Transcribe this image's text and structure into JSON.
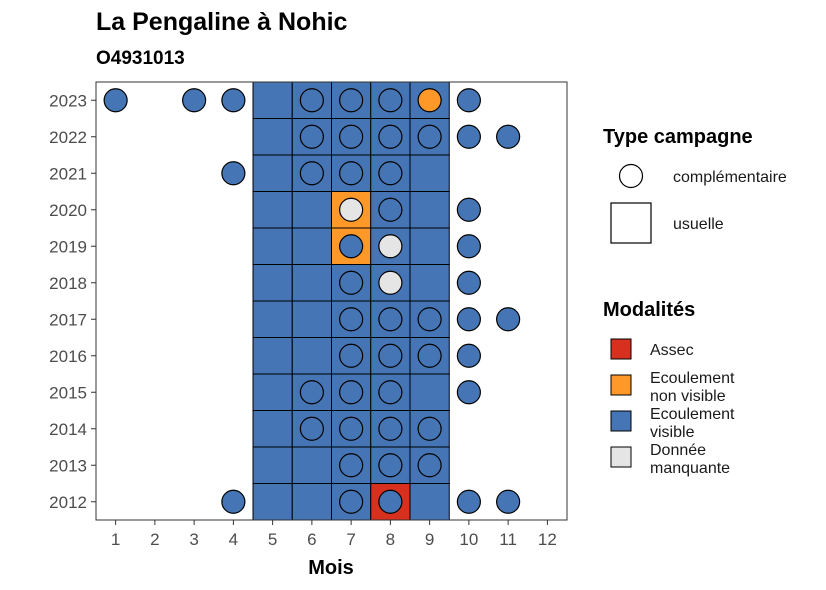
{
  "chart_data": {
    "type": "heatmap",
    "title": "La Pengaline à Nohic",
    "subtitle": "O4931013",
    "xlabel": "Mois",
    "ylabel": "",
    "x_ticks": [
      1,
      2,
      3,
      4,
      5,
      6,
      7,
      8,
      9,
      10,
      11,
      12
    ],
    "y_ticks": [
      2012,
      2013,
      2014,
      2015,
      2016,
      2017,
      2018,
      2019,
      2020,
      2021,
      2022,
      2023
    ],
    "xlim": [
      0.5,
      12.5
    ],
    "ylim": [
      2011.5,
      2023.5
    ],
    "grid": false,
    "colors": {
      "Assec": "#d7301f",
      "Ecoulement non visible": "#fe9929",
      "Ecoulement visible": "#4575b4",
      "Donnée manquante": "#e5e5e5",
      "border": "#000000",
      "panel_border": "#333333"
    },
    "cells_usuelle": [
      {
        "year": 2023,
        "months": [
          5,
          6,
          7,
          8,
          9
        ],
        "values": [
          "Ecoulement visible",
          "Ecoulement visible",
          "Ecoulement visible",
          "Ecoulement visible",
          "Ecoulement visible"
        ]
      },
      {
        "year": 2022,
        "months": [
          5,
          6,
          7,
          8,
          9
        ],
        "values": [
          "Ecoulement visible",
          "Ecoulement visible",
          "Ecoulement visible",
          "Ecoulement visible",
          "Ecoulement visible"
        ]
      },
      {
        "year": 2021,
        "months": [
          5,
          6,
          7,
          8,
          9
        ],
        "values": [
          "Ecoulement visible",
          "Ecoulement visible",
          "Ecoulement visible",
          "Ecoulement visible",
          "Ecoulement visible"
        ]
      },
      {
        "year": 2020,
        "months": [
          5,
          6,
          7,
          8,
          9
        ],
        "values": [
          "Ecoulement visible",
          "Ecoulement visible",
          "Ecoulement non visible",
          "Ecoulement visible",
          "Ecoulement visible"
        ]
      },
      {
        "year": 2019,
        "months": [
          5,
          6,
          7,
          8,
          9
        ],
        "values": [
          "Ecoulement visible",
          "Ecoulement visible",
          "Ecoulement non visible",
          "Ecoulement visible",
          "Ecoulement visible"
        ]
      },
      {
        "year": 2018,
        "months": [
          5,
          6,
          7,
          8,
          9
        ],
        "values": [
          "Ecoulement visible",
          "Ecoulement visible",
          "Ecoulement visible",
          "Ecoulement visible",
          "Ecoulement visible"
        ]
      },
      {
        "year": 2017,
        "months": [
          5,
          6,
          7,
          8,
          9
        ],
        "values": [
          "Ecoulement visible",
          "Ecoulement visible",
          "Ecoulement visible",
          "Ecoulement visible",
          "Ecoulement visible"
        ]
      },
      {
        "year": 2016,
        "months": [
          5,
          6,
          7,
          8,
          9
        ],
        "values": [
          "Ecoulement visible",
          "Ecoulement visible",
          "Ecoulement visible",
          "Ecoulement visible",
          "Ecoulement visible"
        ]
      },
      {
        "year": 2015,
        "months": [
          5,
          6,
          7,
          8,
          9
        ],
        "values": [
          "Ecoulement visible",
          "Ecoulement visible",
          "Ecoulement visible",
          "Ecoulement visible",
          "Ecoulement visible"
        ]
      },
      {
        "year": 2014,
        "months": [
          5,
          6,
          7,
          8,
          9
        ],
        "values": [
          "Ecoulement visible",
          "Ecoulement visible",
          "Ecoulement visible",
          "Ecoulement visible",
          "Ecoulement visible"
        ]
      },
      {
        "year": 2013,
        "months": [
          5,
          6,
          7,
          8,
          9
        ],
        "values": [
          "Ecoulement visible",
          "Ecoulement visible",
          "Ecoulement visible",
          "Ecoulement visible",
          "Ecoulement visible"
        ]
      },
      {
        "year": 2012,
        "months": [
          5,
          6,
          7,
          8,
          9
        ],
        "values": [
          "Ecoulement visible",
          "Ecoulement visible",
          "Ecoulement visible",
          "Assec",
          "Ecoulement visible"
        ]
      }
    ],
    "points_complementaire": [
      {
        "year": 2023,
        "month": 1,
        "value": "Ecoulement visible"
      },
      {
        "year": 2023,
        "month": 3,
        "value": "Ecoulement visible"
      },
      {
        "year": 2023,
        "month": 4,
        "value": "Ecoulement visible"
      },
      {
        "year": 2023,
        "month": 6,
        "value": "Ecoulement visible"
      },
      {
        "year": 2023,
        "month": 7,
        "value": "Ecoulement visible"
      },
      {
        "year": 2023,
        "month": 8,
        "value": "Ecoulement visible"
      },
      {
        "year": 2023,
        "month": 9,
        "value": "Ecoulement non visible"
      },
      {
        "year": 2023,
        "month": 10,
        "value": "Ecoulement visible"
      },
      {
        "year": 2022,
        "month": 6,
        "value": "Ecoulement visible"
      },
      {
        "year": 2022,
        "month": 7,
        "value": "Ecoulement visible"
      },
      {
        "year": 2022,
        "month": 8,
        "value": "Ecoulement visible"
      },
      {
        "year": 2022,
        "month": 9,
        "value": "Ecoulement visible"
      },
      {
        "year": 2022,
        "month": 10,
        "value": "Ecoulement visible"
      },
      {
        "year": 2022,
        "month": 11,
        "value": "Ecoulement visible"
      },
      {
        "year": 2021,
        "month": 4,
        "value": "Ecoulement visible"
      },
      {
        "year": 2021,
        "month": 6,
        "value": "Ecoulement visible"
      },
      {
        "year": 2021,
        "month": 7,
        "value": "Ecoulement visible"
      },
      {
        "year": 2021,
        "month": 8,
        "value": "Ecoulement visible"
      },
      {
        "year": 2020,
        "month": 7,
        "value": "Donnée manquante"
      },
      {
        "year": 2020,
        "month": 8,
        "value": "Ecoulement visible"
      },
      {
        "year": 2020,
        "month": 10,
        "value": "Ecoulement visible"
      },
      {
        "year": 2019,
        "month": 7,
        "value": "Ecoulement visible"
      },
      {
        "year": 2019,
        "month": 8,
        "value": "Donnée manquante"
      },
      {
        "year": 2019,
        "month": 10,
        "value": "Ecoulement visible"
      },
      {
        "year": 2018,
        "month": 7,
        "value": "Ecoulement visible"
      },
      {
        "year": 2018,
        "month": 8,
        "value": "Donnée manquante"
      },
      {
        "year": 2018,
        "month": 10,
        "value": "Ecoulement visible"
      },
      {
        "year": 2017,
        "month": 7,
        "value": "Ecoulement visible"
      },
      {
        "year": 2017,
        "month": 8,
        "value": "Ecoulement visible"
      },
      {
        "year": 2017,
        "month": 9,
        "value": "Ecoulement visible"
      },
      {
        "year": 2017,
        "month": 10,
        "value": "Ecoulement visible"
      },
      {
        "year": 2017,
        "month": 11,
        "value": "Ecoulement visible"
      },
      {
        "year": 2016,
        "month": 7,
        "value": "Ecoulement visible"
      },
      {
        "year": 2016,
        "month": 8,
        "value": "Ecoulement visible"
      },
      {
        "year": 2016,
        "month": 9,
        "value": "Ecoulement visible"
      },
      {
        "year": 2016,
        "month": 10,
        "value": "Ecoulement visible"
      },
      {
        "year": 2015,
        "month": 6,
        "value": "Ecoulement visible"
      },
      {
        "year": 2015,
        "month": 7,
        "value": "Ecoulement visible"
      },
      {
        "year": 2015,
        "month": 8,
        "value": "Ecoulement visible"
      },
      {
        "year": 2015,
        "month": 10,
        "value": "Ecoulement visible"
      },
      {
        "year": 2014,
        "month": 6,
        "value": "Ecoulement visible"
      },
      {
        "year": 2014,
        "month": 7,
        "value": "Ecoulement visible"
      },
      {
        "year": 2014,
        "month": 8,
        "value": "Ecoulement visible"
      },
      {
        "year": 2014,
        "month": 9,
        "value": "Ecoulement visible"
      },
      {
        "year": 2013,
        "month": 7,
        "value": "Ecoulement visible"
      },
      {
        "year": 2013,
        "month": 8,
        "value": "Ecoulement visible"
      },
      {
        "year": 2013,
        "month": 9,
        "value": "Ecoulement visible"
      },
      {
        "year": 2012,
        "month": 4,
        "value": "Ecoulement visible"
      },
      {
        "year": 2012,
        "month": 7,
        "value": "Ecoulement visible"
      },
      {
        "year": 2012,
        "month": 8,
        "value": "Ecoulement visible"
      },
      {
        "year": 2012,
        "month": 10,
        "value": "Ecoulement visible"
      },
      {
        "year": 2012,
        "month": 11,
        "value": "Ecoulement visible"
      }
    ],
    "legend": {
      "placement": "right",
      "type_title": "Type campagne",
      "type_items": [
        {
          "key": "complementaire",
          "label": "complémentaire",
          "shape": "circle"
        },
        {
          "key": "usuelle",
          "label": "usuelle",
          "shape": "square"
        }
      ],
      "modalites_title": "Modalités",
      "modalites_items": [
        {
          "key": "Assec",
          "lines": [
            "Assec"
          ]
        },
        {
          "key": "Ecoulement non visible",
          "lines": [
            "Ecoulement",
            "non visible"
          ]
        },
        {
          "key": "Ecoulement visible",
          "lines": [
            "Ecoulement",
            "visible"
          ]
        },
        {
          "key": "Donnée manquante",
          "lines": [
            "Donnée",
            "manquante"
          ]
        }
      ]
    }
  }
}
